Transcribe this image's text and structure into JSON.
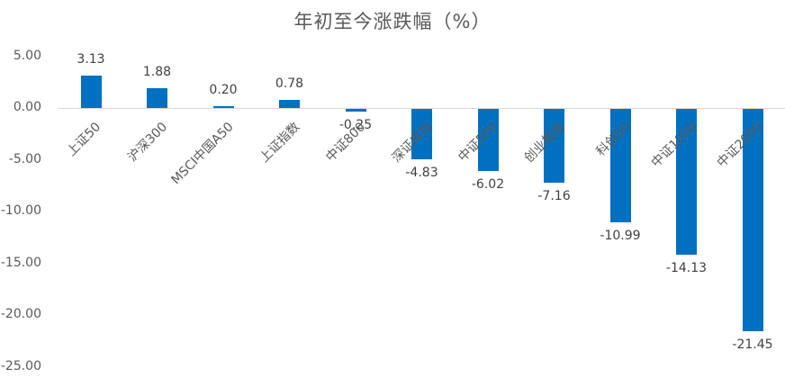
{
  "chart_data": {
    "type": "bar",
    "title": "年初至今涨跌幅（%）",
    "xlabel": "",
    "ylabel": "",
    "categories": [
      "上证50",
      "沪深300",
      "MSCI中国A50",
      "上证指数",
      "中证800",
      "深证成指",
      "中证500",
      "创业板指",
      "科创50",
      "中证1000",
      "中证2000"
    ],
    "values": [
      3.13,
      1.88,
      0.2,
      0.78,
      -0.25,
      -4.83,
      -6.02,
      -7.16,
      -10.99,
      -14.13,
      -21.45
    ],
    "value_labels": [
      "3.13",
      "1.88",
      "0.20",
      "0.78",
      "-0.25",
      "-4.83",
      "-6.02",
      "-7.16",
      "-10.99",
      "-14.13",
      "-21.45"
    ],
    "ylim": [
      -25,
      5
    ],
    "yticks": [
      "5.00",
      "0.00",
      "-5.00",
      "-10.00",
      "-15.00",
      "-20.00",
      "-25.00"
    ],
    "grid": false,
    "legend": null,
    "bar_color": "#0070c0"
  }
}
